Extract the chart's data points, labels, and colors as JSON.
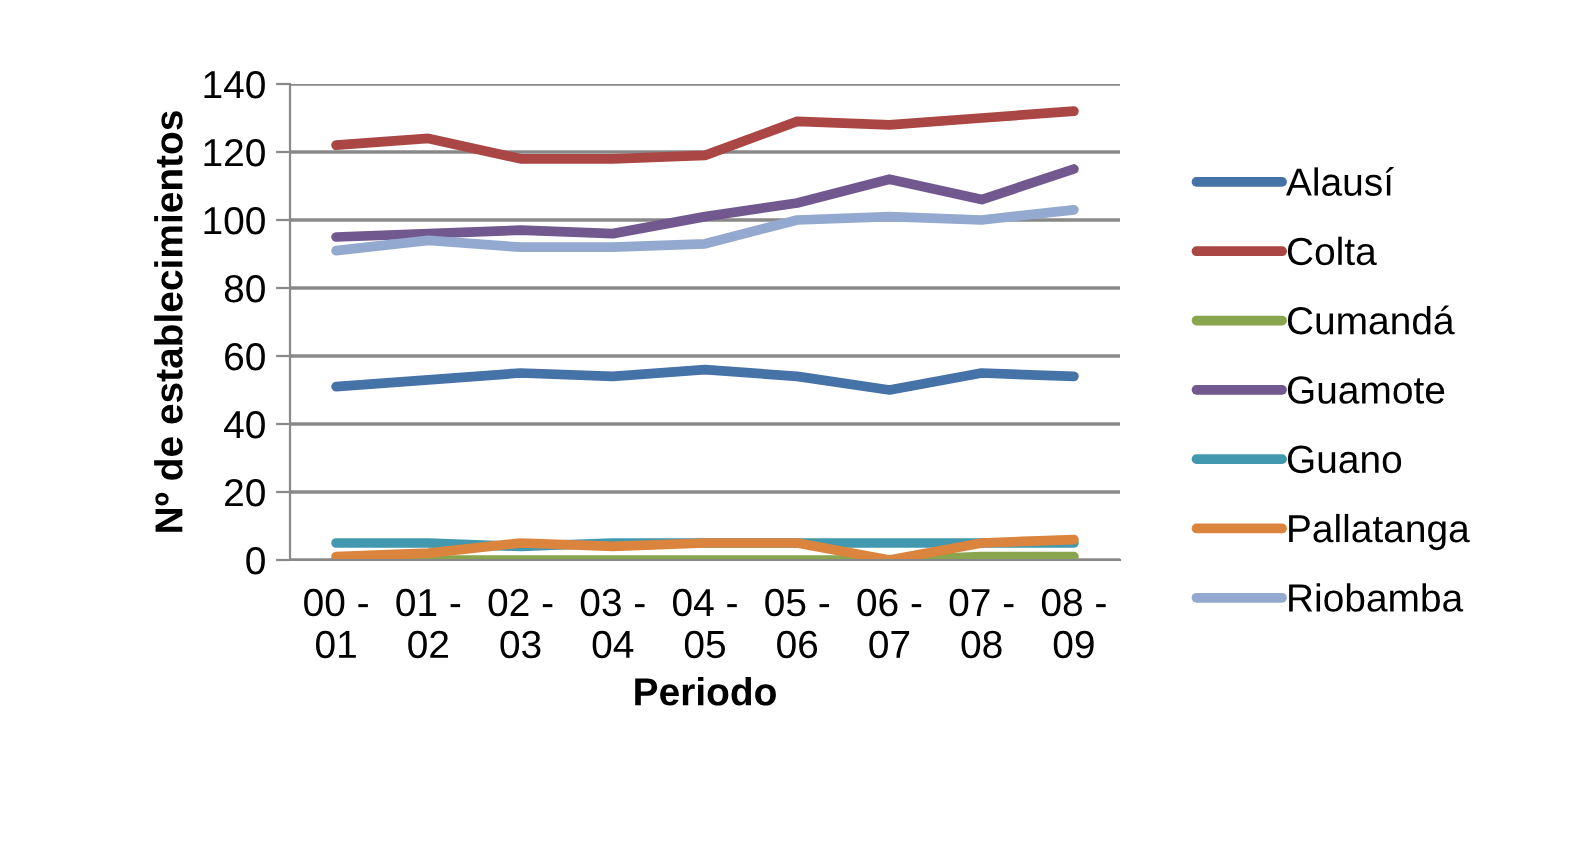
{
  "chart_data": {
    "type": "line",
    "xlabel": "Periodo",
    "ylabel": "Nº de establecimientos",
    "categories": [
      "00 -\n01",
      "01 -\n02",
      "02 -\n03",
      "03 -\n04",
      "04 -\n05",
      "05 -\n06",
      "06 -\n07",
      "07 -\n08",
      "08 -\n09"
    ],
    "series": [
      {
        "name": "Alausí",
        "color": "#4572a7",
        "values": [
          51,
          53,
          55,
          54,
          56,
          54,
          50,
          55,
          54
        ]
      },
      {
        "name": "Colta",
        "color": "#aa4643",
        "values": [
          122,
          124,
          118,
          118,
          119,
          129,
          128,
          130,
          132
        ]
      },
      {
        "name": "Cumandá",
        "color": "#89a54e",
        "values": [
          0,
          0,
          0,
          0,
          0,
          0,
          0,
          1,
          1
        ]
      },
      {
        "name": "Guamote",
        "color": "#71588f",
        "values": [
          95,
          96,
          97,
          96,
          101,
          105,
          112,
          106,
          115
        ]
      },
      {
        "name": "Guano",
        "color": "#4198af",
        "values": [
          5,
          5,
          4,
          5,
          5,
          5,
          5,
          5,
          5
        ]
      },
      {
        "name": "Pallatanga",
        "color": "#db843d",
        "values": [
          1,
          2,
          5,
          4,
          5,
          5,
          0,
          5,
          6
        ]
      },
      {
        "name": "Riobamba",
        "color": "#93a9cf",
        "values": [
          91,
          94,
          92,
          92,
          93,
          100,
          101,
          100,
          103
        ]
      }
    ],
    "ylim": [
      0,
      140
    ],
    "yticks": [
      0,
      20,
      40,
      60,
      80,
      100,
      120,
      140
    ],
    "grid": "y",
    "legend": "right",
    "marker": "none",
    "line_style": "solid"
  }
}
